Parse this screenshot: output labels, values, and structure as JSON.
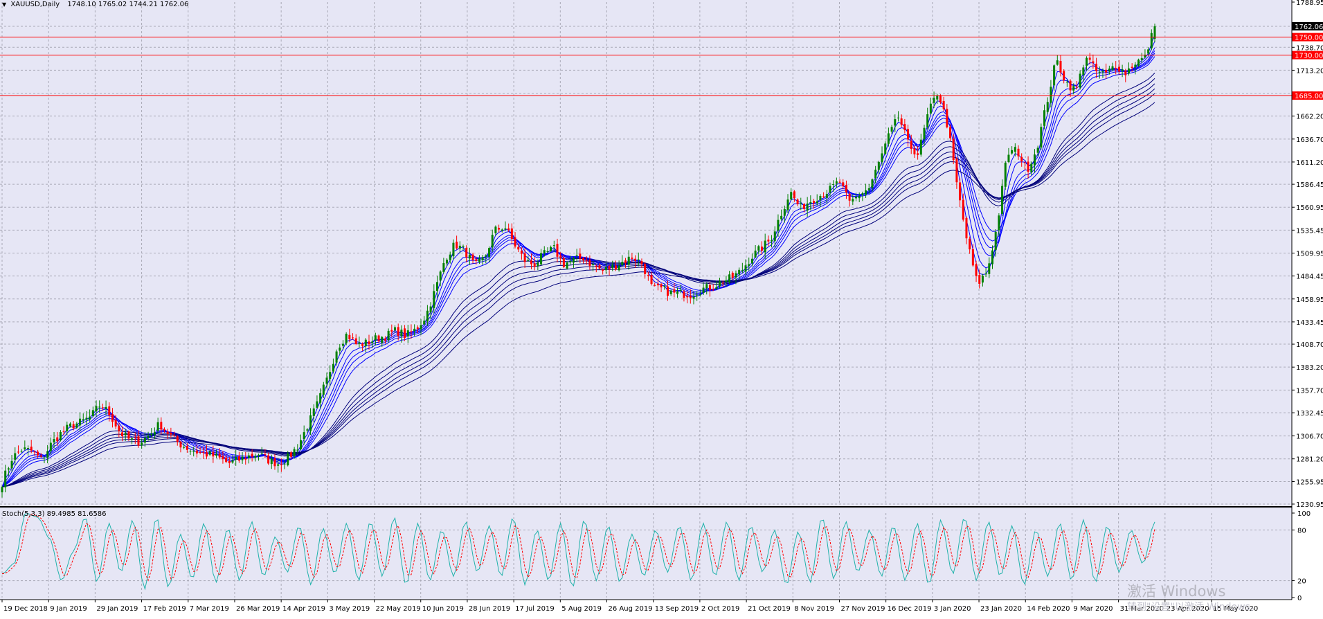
{
  "header": {
    "symbol": "XAUUSD,Daily",
    "ohlc": "1748.10 1765.02 1744.21 1762.06"
  },
  "indicator": {
    "label": "Stoch(5,3,3) 89.4985 81.6586",
    "main_value": 89.4985,
    "signal_value": 81.6586
  },
  "watermark": {
    "title": "激活 Windows",
    "subtitle": "转到\"设置\"以激活 Windows。"
  },
  "colors": {
    "background": "#e6e6f5",
    "grid": "#a9a9b6",
    "bull_candle": "#008000",
    "bear_candle": "#ff0000",
    "ma_dark": "#00007a",
    "ma_light": "#0000ff",
    "level_line": "#ff0000",
    "price_tag": "#ff0000",
    "current_price_tag": "#000000",
    "stoch_main": "#20b2aa",
    "stoch_signal": "#ff0000"
  },
  "chart_data": {
    "type": "candlestick",
    "instrument": "XAUUSD",
    "timeframe": "Daily",
    "price_axis_ticks": [
      "1788.95",
      "1762.06",
      "1738.70",
      "1713.20",
      "1687.45",
      "1662.20",
      "1636.70",
      "1611.20",
      "1586.45",
      "1560.95",
      "1535.45",
      "1509.95",
      "1484.45",
      "1458.95",
      "1433.45",
      "1408.70",
      "1383.20",
      "1357.70",
      "1332.45",
      "1306.70",
      "1281.20",
      "1255.95",
      "1230.95"
    ],
    "price_range": [
      1230.95,
      1788.95
    ],
    "stoch_axis_ticks": [
      "100",
      "80",
      "20",
      "0"
    ],
    "stoch_range": [
      0,
      100
    ],
    "horizontal_levels": [
      {
        "price": 1750.0,
        "label": "1750.00"
      },
      {
        "price": 1730.0,
        "label": "1730.00"
      },
      {
        "price": 1685.0,
        "label": "1685.00"
      }
    ],
    "current_price": {
      "price": 1762.06,
      "label": "1762.06"
    },
    "last_bar": {
      "open": 1748.1,
      "high": 1765.02,
      "low": 1744.21,
      "close": 1762.06
    },
    "date_labels": [
      "19 Dec 2018",
      "9 Jan 2019",
      "29 Jan 2019",
      "17 Feb 2019",
      "7 Mar 2019",
      "26 Mar 2019",
      "14 Apr 2019",
      "3 May 2019",
      "22 May 2019",
      "10 Jun 2019",
      "28 Jun 2019",
      "17 Jul 2019",
      "5 Aug 2019",
      "26 Aug 2019",
      "13 Sep 2019",
      "2 Oct 2019",
      "21 Oct 2019",
      "8 Nov 2019",
      "27 Nov 2019",
      "16 Dec 2019",
      "3 Jan 2020",
      "23 Jan 2020",
      "14 Feb 2020",
      "9 Mar 2020",
      "31 Mar 2020",
      "23 Apr 2020",
      "15 May 2020"
    ],
    "close_anchors": [
      1255,
      1282,
      1292,
      1290,
      1280,
      1298,
      1310,
      1318,
      1322,
      1328,
      1342,
      1330,
      1310,
      1302,
      1300,
      1308,
      1320,
      1308,
      1298,
      1292,
      1288,
      1286,
      1282,
      1276,
      1280,
      1284,
      1287,
      1280,
      1276,
      1282,
      1295,
      1318,
      1342,
      1370,
      1405,
      1420,
      1408,
      1410,
      1415,
      1418,
      1424,
      1418,
      1425,
      1440,
      1470,
      1505,
      1520,
      1512,
      1495,
      1505,
      1535,
      1540,
      1520,
      1502,
      1497,
      1508,
      1515,
      1498,
      1502,
      1505,
      1496,
      1490,
      1495,
      1500,
      1506,
      1498,
      1470,
      1470,
      1465,
      1465,
      1464,
      1470,
      1472,
      1478,
      1482,
      1490,
      1505,
      1515,
      1525,
      1552,
      1578,
      1560,
      1568,
      1574,
      1580,
      1590,
      1565,
      1575,
      1582,
      1610,
      1640,
      1662,
      1630,
      1620,
      1665,
      1690,
      1650,
      1580,
      1520,
      1475,
      1490,
      1540,
      1620,
      1625,
      1602,
      1625,
      1675,
      1725,
      1700,
      1690,
      1730,
      1712,
      1708,
      1720,
      1710,
      1722,
      1727,
      1762
    ],
    "stoch_anchors": [
      28,
      40,
      100,
      95,
      70,
      20,
      55,
      95,
      18,
      88,
      30,
      92,
      10,
      95,
      12,
      75,
      22,
      88,
      18,
      82,
      20,
      90,
      25,
      72,
      30,
      85,
      15,
      82,
      28,
      88,
      20,
      90,
      25,
      95,
      15,
      88,
      20,
      80,
      25,
      90,
      30,
      85,
      25,
      95,
      15,
      80,
      20,
      88,
      12,
      92,
      20,
      85,
      18,
      75,
      25,
      80,
      30,
      85,
      20,
      88,
      25,
      90,
      20,
      85,
      30,
      80,
      15,
      78,
      18,
      95,
      22,
      90,
      30,
      80,
      25,
      85,
      20,
      88,
      15,
      92,
      28,
      95,
      20,
      90,
      25,
      85,
      15,
      80,
      25,
      88,
      20,
      92,
      18,
      85,
      30,
      80,
      40,
      89
    ]
  }
}
